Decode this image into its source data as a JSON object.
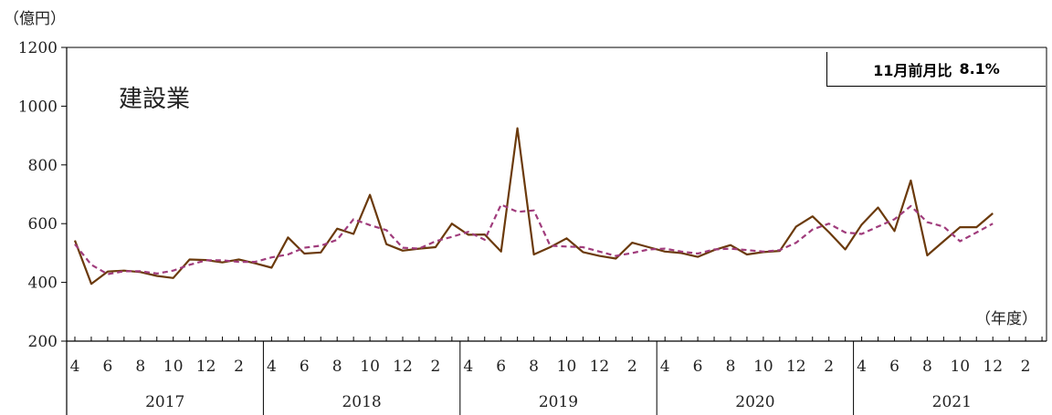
{
  "chart_data": {
    "type": "line",
    "title": "建設業",
    "ylabel": "（億円）",
    "xlabel": "（年度）",
    "ylim": [
      200,
      1200
    ],
    "yticks": [
      200,
      400,
      600,
      800,
      1000,
      1200
    ],
    "month_ticks": [
      "4",
      "6",
      "8",
      "10",
      "12",
      "2"
    ],
    "years": [
      "2017",
      "2018",
      "2019",
      "2020",
      "2021"
    ],
    "annotation": {
      "label": "11月前月比",
      "value": "8.1%"
    },
    "colors": {
      "actual": "#6b3a0c",
      "trend": "#a03c7c"
    },
    "series": [
      {
        "style": "solid",
        "values": [
          543,
          395,
          437,
          440,
          435,
          422,
          415,
          478,
          476,
          468,
          478,
          465,
          450,
          553,
          498,
          502,
          583,
          565,
          698,
          530,
          508,
          515,
          520,
          600,
          562,
          563,
          505,
          925,
          495,
          520,
          550,
          503,
          490,
          481,
          535,
          520,
          505,
          500,
          487,
          510,
          527,
          495,
          503,
          507,
          590,
          625,
          571,
          512,
          597,
          655,
          575,
          747,
          492,
          540,
          588,
          588,
          635
        ]
      },
      {
        "style": "dashed",
        "values": [
          530,
          460,
          428,
          438,
          438,
          430,
          440,
          460,
          475,
          475,
          470,
          470,
          485,
          495,
          518,
          525,
          545,
          615,
          595,
          578,
          518,
          515,
          540,
          555,
          572,
          545,
          665,
          640,
          645,
          525,
          522,
          520,
          505,
          490,
          500,
          512,
          515,
          505,
          498,
          512,
          515,
          510,
          505,
          510,
          535,
          580,
          600,
          570,
          565,
          590,
          615,
          660,
          605,
          590,
          540,
          570,
          600
        ]
      }
    ]
  }
}
